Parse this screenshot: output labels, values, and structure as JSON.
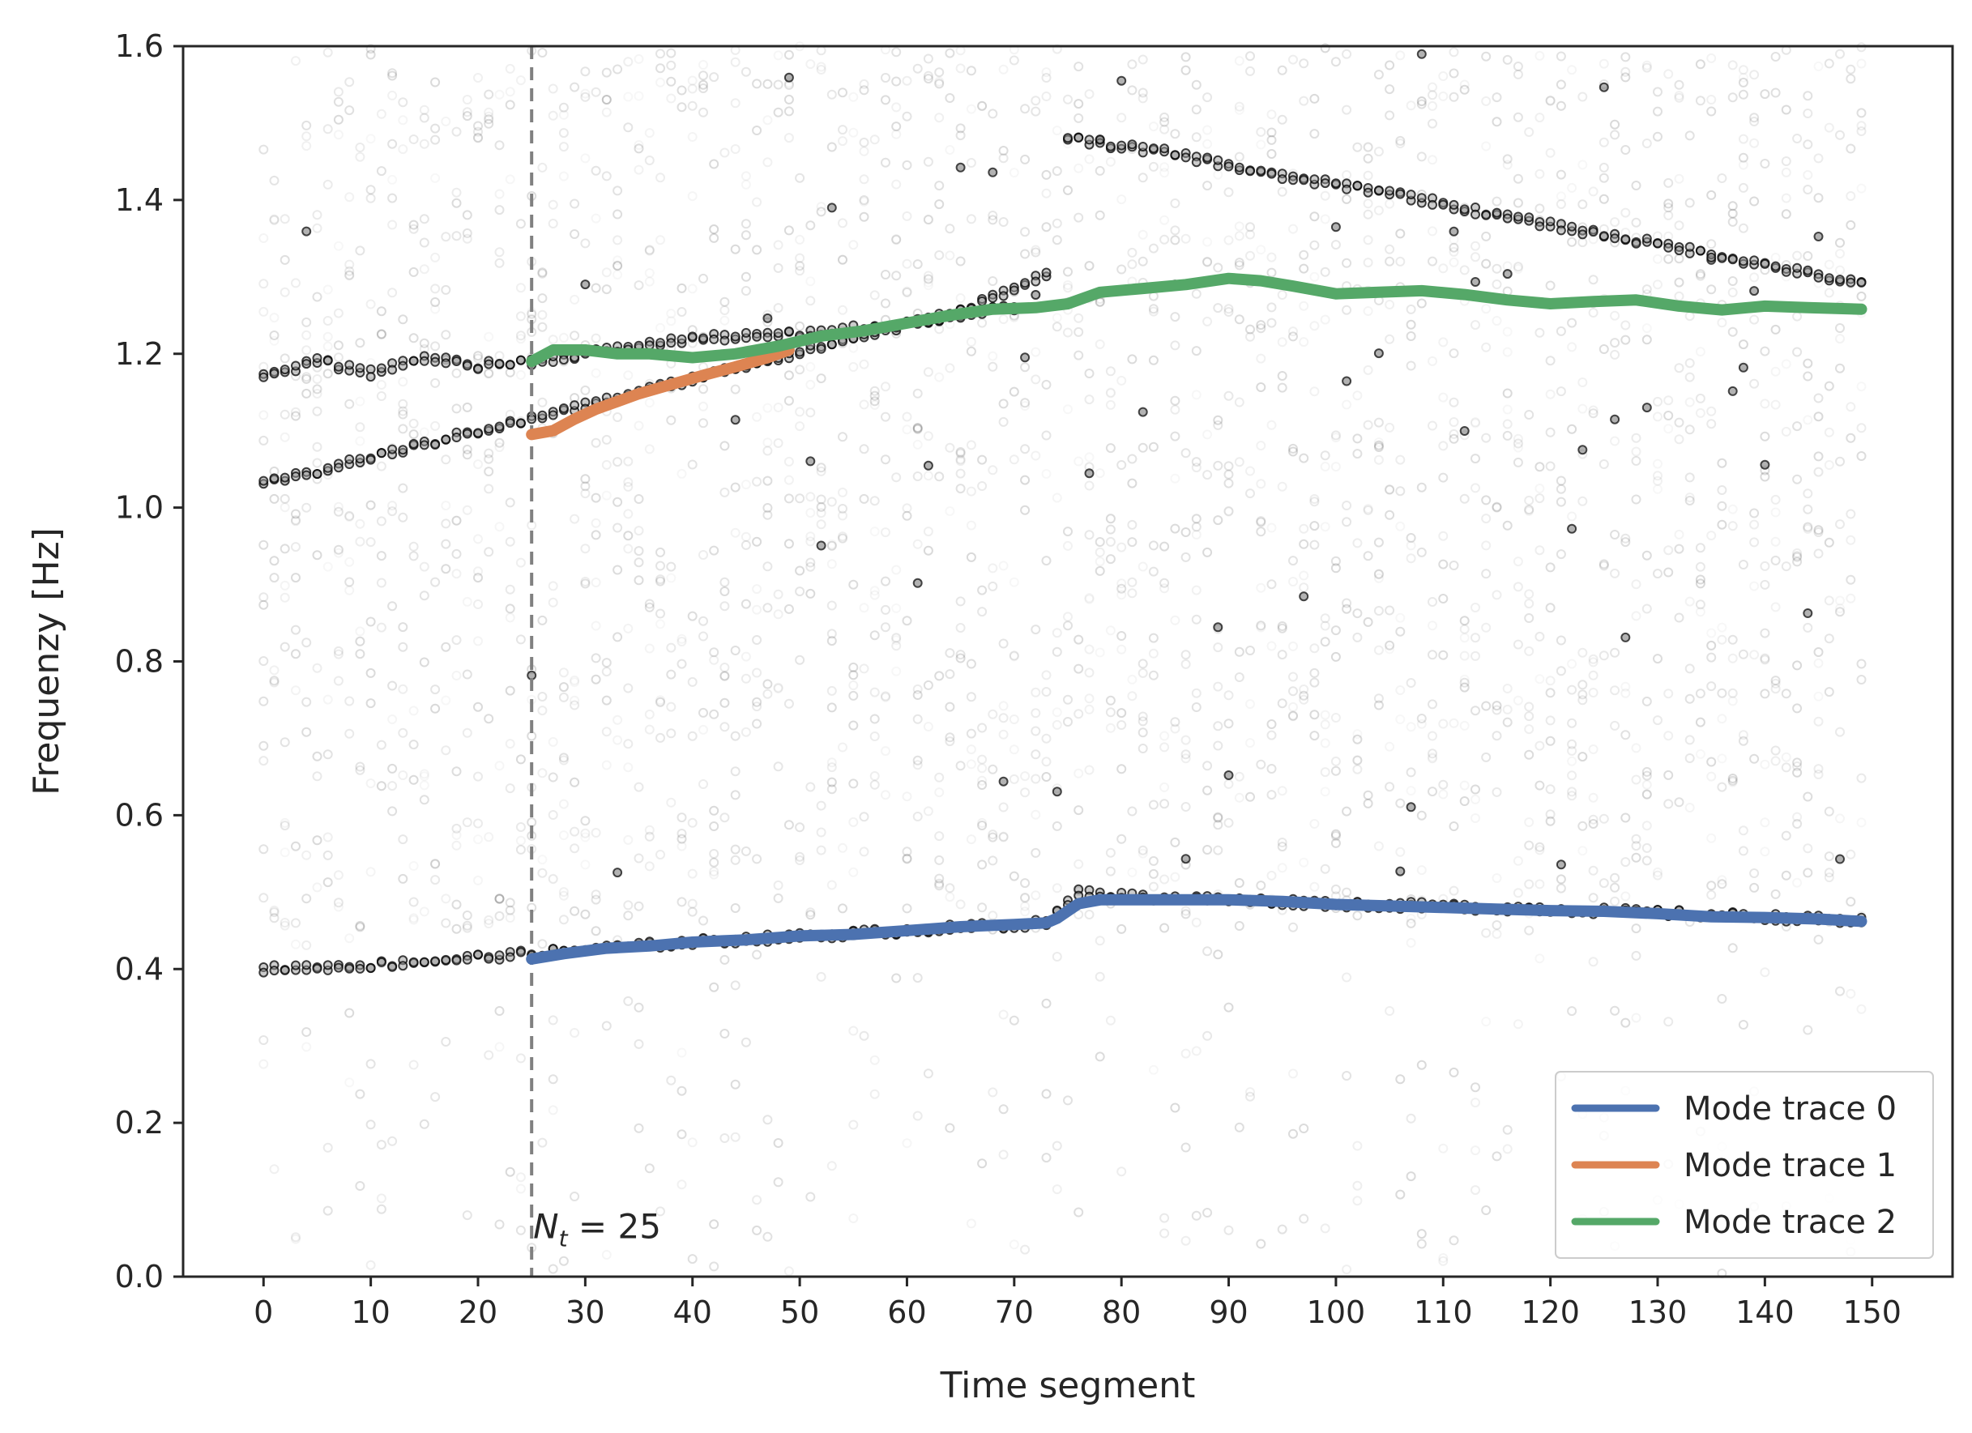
{
  "chart_data": {
    "type": "scatter",
    "title": "",
    "xlabel": "Time segment",
    "ylabel": "Frequenzy [Hz]",
    "xlim": [
      -7.5,
      157.5
    ],
    "ylim": [
      0.0,
      1.6
    ],
    "xticks": [
      0,
      10,
      20,
      30,
      40,
      50,
      60,
      70,
      80,
      90,
      100,
      110,
      120,
      130,
      140,
      150
    ],
    "xtick_labels": [
      "0",
      "10",
      "20",
      "30",
      "40",
      "50",
      "60",
      "70",
      "80",
      "90",
      "100",
      "110",
      "120",
      "130",
      "140",
      "150"
    ],
    "yticks": [
      0.0,
      0.2,
      0.4,
      0.6,
      0.8,
      1.0,
      1.2,
      1.4,
      1.6
    ],
    "ytick_labels": [
      "0.0",
      "0.2",
      "0.4",
      "0.6",
      "0.8",
      "1.0",
      "1.2",
      "1.4",
      "1.6"
    ],
    "grid": false,
    "vline": {
      "x": 25,
      "style": "dashed",
      "color": "#808080"
    },
    "annotation": {
      "base": "N",
      "subscript": "t",
      "rest": " = 25",
      "x": 25,
      "y": 0.05
    },
    "legend": {
      "position": "bottom-right",
      "entries": [
        "Mode trace 0",
        "Mode trace 1",
        "Mode trace 2"
      ]
    },
    "scatter_note": "semi-transparent black circles showing identified frequencies per time segment (0-149); dense tracks near 0.40-0.49 Hz, 1.03-1.30 Hz, 1.17-1.30 Hz and 1.48-1.29 Hz, with faint noise 0-1.6 Hz",
    "scatter_tracks": [
      {
        "x": [
          0,
          10,
          20,
          25,
          40,
          60,
          73,
          76,
          80,
          90,
          100,
          120,
          140,
          149
        ],
        "y": [
          0.4,
          0.405,
          0.415,
          0.42,
          0.435,
          0.45,
          0.46,
          0.5,
          0.495,
          0.49,
          0.485,
          0.478,
          0.468,
          0.462
        ]
      },
      {
        "x": [
          0,
          10,
          20,
          25,
          35,
          45,
          55,
          65,
          73
        ],
        "y": [
          1.03,
          1.065,
          1.1,
          1.115,
          1.15,
          1.185,
          1.22,
          1.255,
          1.305
        ]
      },
      {
        "x": [
          0,
          5,
          10,
          15,
          20,
          25,
          30,
          40,
          50,
          60,
          70
        ],
        "y": [
          1.17,
          1.19,
          1.175,
          1.195,
          1.185,
          1.19,
          1.2,
          1.22,
          1.225,
          1.24,
          1.26
        ]
      },
      {
        "x": [
          75,
          85,
          95,
          105,
          115,
          125,
          135,
          149
        ],
        "y": [
          1.48,
          1.46,
          1.43,
          1.41,
          1.38,
          1.355,
          1.33,
          1.29
        ]
      }
    ],
    "series": [
      {
        "name": "Mode trace 0",
        "color": "#4c72b0",
        "x": [
          25,
          28,
          32,
          36,
          40,
          45,
          50,
          55,
          60,
          65,
          70,
          73,
          74,
          76,
          78,
          82,
          86,
          90,
          95,
          100,
          105,
          110,
          115,
          120,
          125,
          130,
          135,
          140,
          145,
          149
        ],
        "y": [
          0.413,
          0.42,
          0.427,
          0.43,
          0.435,
          0.438,
          0.443,
          0.445,
          0.45,
          0.455,
          0.458,
          0.46,
          0.466,
          0.485,
          0.49,
          0.49,
          0.49,
          0.49,
          0.488,
          0.484,
          0.482,
          0.48,
          0.478,
          0.476,
          0.475,
          0.472,
          0.468,
          0.467,
          0.465,
          0.462
        ]
      },
      {
        "name": "Mode trace 1",
        "color": "#dd8452",
        "x": [
          25,
          27,
          29,
          31,
          33,
          35,
          38,
          41,
          44,
          47,
          49
        ],
        "y": [
          1.095,
          1.1,
          1.115,
          1.128,
          1.138,
          1.148,
          1.16,
          1.172,
          1.183,
          1.195,
          1.205
        ]
      },
      {
        "name": "Mode trace 2",
        "color": "#55a868",
        "x": [
          25,
          27,
          30,
          33,
          36,
          40,
          44,
          48,
          52,
          56,
          60,
          64,
          68,
          72,
          75,
          78,
          82,
          86,
          90,
          93,
          96,
          100,
          104,
          108,
          112,
          116,
          120,
          124,
          128,
          132,
          136,
          140,
          144,
          149
        ],
        "y": [
          1.19,
          1.205,
          1.205,
          1.2,
          1.2,
          1.195,
          1.2,
          1.21,
          1.223,
          1.23,
          1.24,
          1.25,
          1.258,
          1.26,
          1.265,
          1.28,
          1.285,
          1.29,
          1.298,
          1.295,
          1.288,
          1.278,
          1.28,
          1.282,
          1.277,
          1.27,
          1.265,
          1.268,
          1.27,
          1.262,
          1.257,
          1.262,
          1.26,
          1.258
        ]
      }
    ]
  }
}
